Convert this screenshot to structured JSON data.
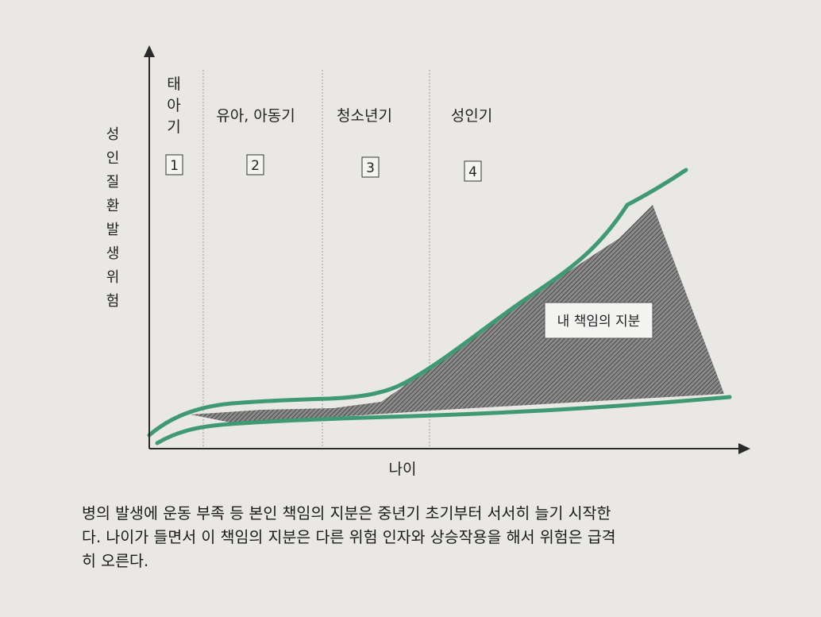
{
  "diagram": {
    "y_axis_label": "성인 질환 발생 위험",
    "x_axis_label": "나이",
    "stages": [
      {
        "label": "태아기",
        "number": "1"
      },
      {
        "label": "유아, 아동기",
        "number": "2"
      },
      {
        "label": "청소년기",
        "number": "3"
      },
      {
        "label": "성인기",
        "number": "4"
      }
    ],
    "area_label": "내 책임의 지분",
    "colors": {
      "curve": "#3f9a73",
      "area": "#6a6a6a",
      "axis": "#2a2a2a",
      "divider": "#9a9a9a",
      "background": "#e9e8e4"
    }
  },
  "caption": {
    "lines": [
      "병의 발생에 운동 부족 등 본인 책임의 지분은 중년기 초기부터 서서히 늘기 시작한",
      "다. 나이가 들면서 이 책임의 지분은 다른 위험 인자와 상승작용을 해서 위험은 급격",
      "히 오른다."
    ]
  }
}
